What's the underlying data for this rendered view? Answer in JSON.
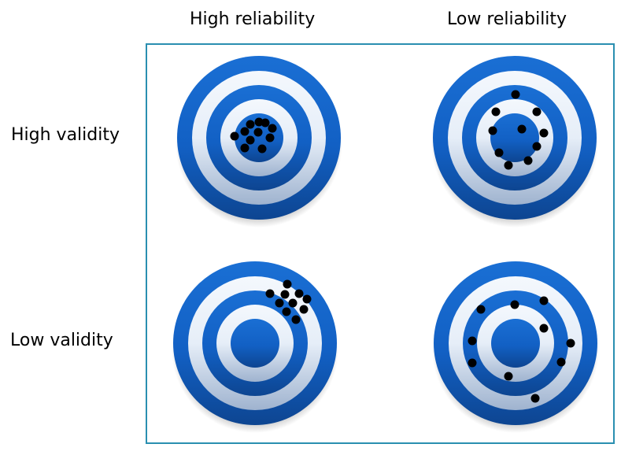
{
  "columns": {
    "high_reliability": "High reliability",
    "low_reliability": "Low reliability"
  },
  "rows": {
    "high_validity": "High validity",
    "low_validity": "Low validity"
  },
  "colors": {
    "frame": "#2a8fb0",
    "ring_blue": "#1566c8",
    "ring_white": "#eef3fa",
    "dot": "#000000"
  }
}
